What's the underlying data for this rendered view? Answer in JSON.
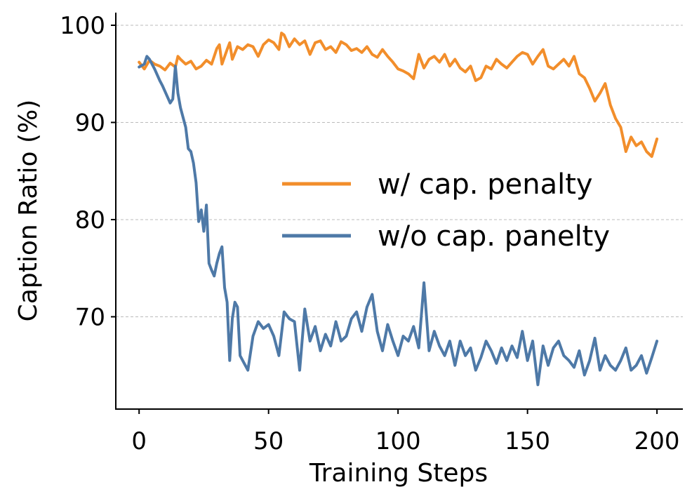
{
  "chart_data": {
    "type": "line",
    "title": "",
    "xlabel": "Training Steps",
    "ylabel": "Caption Ratio (%)",
    "xlim": [
      -9,
      210
    ],
    "ylim": [
      60.5,
      101.3
    ],
    "xticks": [
      0,
      50,
      100,
      150,
      200
    ],
    "xtick_labels": [
      "0",
      "50",
      "100",
      "150",
      "200"
    ],
    "yticks": [
      70,
      80,
      90,
      100
    ],
    "ytick_labels": [
      "70",
      "80",
      "90",
      "100"
    ],
    "grid": "horizontal-dashed",
    "legend_position": "center-right",
    "series": [
      {
        "name": "w/ cap. penalty",
        "color": "#f28e2b",
        "x": [
          0,
          2,
          4,
          6,
          8,
          10,
          12,
          14,
          15,
          16,
          18,
          20,
          22,
          24,
          26,
          28,
          30,
          31,
          32,
          34,
          35,
          36,
          38,
          40,
          42,
          44,
          46,
          48,
          50,
          52,
          54,
          55,
          56,
          58,
          60,
          62,
          64,
          66,
          68,
          70,
          72,
          74,
          76,
          78,
          80,
          82,
          84,
          86,
          88,
          90,
          92,
          94,
          96,
          98,
          100,
          102,
          104,
          106,
          108,
          110,
          112,
          114,
          116,
          118,
          120,
          122,
          124,
          126,
          128,
          130,
          132,
          134,
          136,
          138,
          140,
          142,
          144,
          146,
          148,
          150,
          152,
          154,
          156,
          158,
          160,
          162,
          164,
          166,
          168,
          170,
          172,
          174,
          176,
          178,
          180,
          182,
          184,
          186,
          188,
          190,
          192,
          194,
          196,
          198,
          200
        ],
        "y": [
          96.2,
          95.5,
          96.4,
          96.0,
          95.8,
          95.4,
          96.1,
          95.7,
          96.8,
          96.5,
          96.0,
          96.3,
          95.5,
          95.8,
          96.4,
          96.0,
          97.6,
          98.0,
          96.0,
          97.5,
          98.2,
          96.5,
          97.8,
          97.5,
          98.0,
          97.8,
          96.8,
          98.0,
          98.5,
          98.2,
          97.5,
          99.2,
          99.0,
          97.8,
          98.6,
          98.0,
          98.4,
          97.0,
          98.2,
          98.4,
          97.5,
          97.8,
          97.2,
          98.3,
          98.0,
          97.4,
          97.6,
          97.2,
          97.8,
          97.0,
          96.7,
          97.5,
          96.8,
          96.2,
          95.5,
          95.3,
          95.0,
          94.5,
          97.0,
          95.6,
          96.5,
          96.8,
          96.2,
          97.0,
          95.8,
          96.5,
          95.6,
          95.2,
          95.8,
          94.3,
          94.6,
          95.8,
          95.5,
          96.5,
          96.0,
          95.6,
          96.2,
          96.8,
          97.2,
          97.0,
          96.0,
          96.8,
          97.5,
          95.8,
          95.5,
          96.0,
          96.5,
          95.8,
          96.8,
          95.0,
          94.6,
          93.5,
          92.2,
          93.0,
          94.0,
          91.8,
          90.4,
          89.5,
          87.0,
          88.5,
          87.6,
          88.0,
          87.0,
          86.5,
          88.3
        ]
      },
      {
        "name": "w/o cap. panelty",
        "color": "#4e79a7",
        "x": [
          0,
          2,
          3,
          4,
          6,
          8,
          9,
          10,
          12,
          13,
          14,
          15,
          16,
          18,
          19,
          20,
          21,
          22,
          23,
          24,
          25,
          26,
          27,
          28,
          29,
          30,
          31,
          32,
          33,
          34,
          35,
          36,
          37,
          38,
          39,
          40,
          42,
          44,
          46,
          48,
          50,
          52,
          54,
          56,
          58,
          60,
          62,
          64,
          66,
          68,
          70,
          72,
          74,
          76,
          78,
          80,
          82,
          84,
          86,
          88,
          90,
          92,
          94,
          96,
          98,
          100,
          102,
          104,
          106,
          108,
          110,
          112,
          114,
          116,
          118,
          120,
          122,
          124,
          126,
          128,
          130,
          132,
          134,
          136,
          138,
          140,
          142,
          144,
          146,
          148,
          150,
          152,
          154,
          156,
          158,
          160,
          162,
          164,
          166,
          168,
          170,
          172,
          174,
          176,
          178,
          180,
          182,
          184,
          186,
          188,
          190,
          192,
          194,
          196,
          198,
          200
        ],
        "y": [
          95.7,
          96.0,
          96.8,
          96.5,
          95.5,
          94.3,
          93.8,
          93.2,
          92.0,
          92.4,
          95.8,
          93.0,
          91.5,
          89.5,
          87.3,
          87.0,
          85.8,
          83.8,
          79.8,
          81.0,
          78.8,
          81.5,
          75.5,
          74.8,
          74.2,
          75.5,
          76.5,
          77.2,
          73.0,
          71.5,
          65.5,
          69.8,
          71.5,
          71.0,
          66.0,
          65.5,
          64.5,
          68.0,
          69.5,
          68.8,
          69.2,
          68.0,
          66.0,
          70.5,
          69.8,
          69.5,
          64.5,
          70.8,
          67.5,
          69.0,
          66.5,
          68.2,
          67.0,
          69.5,
          67.5,
          68.0,
          69.8,
          70.5,
          68.5,
          71.0,
          72.3,
          68.5,
          66.5,
          69.2,
          67.5,
          66.0,
          68.0,
          67.5,
          69.0,
          66.8,
          73.5,
          66.5,
          68.5,
          67.0,
          66.0,
          67.5,
          65.0,
          67.5,
          66.0,
          66.8,
          64.5,
          65.8,
          67.5,
          66.5,
          65.2,
          66.8,
          65.5,
          67.0,
          65.8,
          68.5,
          65.5,
          67.5,
          63.0,
          67.0,
          65.0,
          66.8,
          67.5,
          66.0,
          65.5,
          64.8,
          66.5,
          64.0,
          65.5,
          67.8,
          64.5,
          66.0,
          65.0,
          64.5,
          65.5,
          66.8,
          64.5,
          65.0,
          66.0,
          64.2,
          65.8,
          67.5
        ]
      }
    ]
  }
}
